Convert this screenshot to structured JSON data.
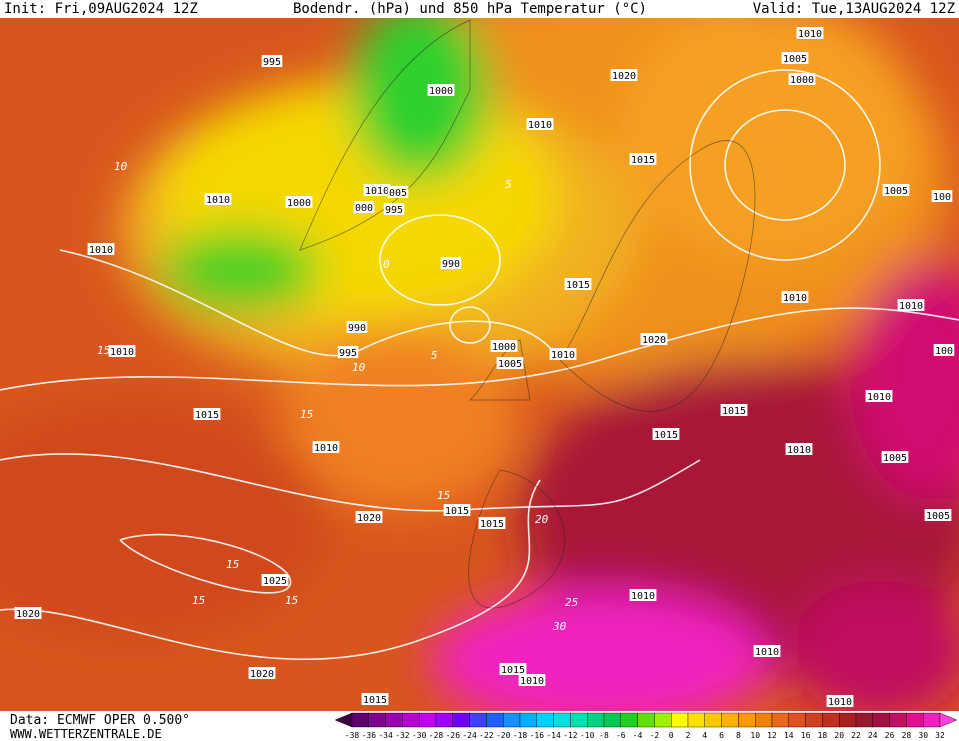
{
  "header": {
    "init": "Init: Fri,09AUG2024 12Z",
    "title": "Bodendr. (hPa) und 850 hPa Temperatur (°C)",
    "valid": "Valid: Tue,13AUG2024 12Z"
  },
  "footer": {
    "data": "Data: ECMWF OPER 0.500°",
    "site": "WWW.WETTERZENTRALE.DE"
  },
  "isobar_labels": [
    "995",
    "1010",
    "1005",
    "1020",
    "1000",
    "1000",
    "1010",
    "1015",
    "1010",
    "005",
    "1005",
    "100",
    "1010",
    "1000",
    "000",
    "995",
    "1010",
    "990",
    "1015",
    "1010",
    "1010",
    "990",
    "1020",
    "1000",
    "100",
    "1010",
    "995",
    "1010",
    "1005",
    "1010",
    "1015",
    "1015",
    "1015",
    "1010",
    "1010",
    "1005",
    "1015",
    "1015",
    "1020",
    "1005",
    "1025",
    "1020",
    "1010",
    "1010",
    "1015",
    "1010",
    "1020",
    "1015",
    "1010"
  ],
  "contour_labels": [
    "10",
    "15",
    "10",
    "5",
    "15",
    "15",
    "20",
    "15",
    "15",
    "15",
    "25",
    "30",
    "0",
    "5"
  ],
  "colorbar": {
    "labels": [
      -38,
      -36,
      -34,
      -32,
      -30,
      -28,
      -26,
      -24,
      -22,
      -20,
      -18,
      -16,
      -14,
      -12,
      -10,
      -8,
      -6,
      -4,
      -2,
      0,
      2,
      4,
      6,
      8,
      10,
      12,
      14,
      16,
      18,
      20,
      22,
      24,
      26,
      28,
      30,
      32
    ],
    "colors": [
      "#400040",
      "#600070",
      "#800090",
      "#9a00b0",
      "#b400d0",
      "#c000f0",
      "#a000ff",
      "#7000ff",
      "#4040ff",
      "#2060ff",
      "#1890ff",
      "#00b0ff",
      "#00d0ff",
      "#00e0e0",
      "#00e0b0",
      "#00d080",
      "#00c850",
      "#20d020",
      "#60e000",
      "#a0f000",
      "#ffff00",
      "#ffe000",
      "#ffc800",
      "#ffb000",
      "#ff9800",
      "#f08000",
      "#e86818",
      "#e05020",
      "#d04020",
      "#c03020",
      "#a82020",
      "#981830",
      "#a01040",
      "#c01060",
      "#e01090",
      "#f020c0",
      "#ff40e0"
    ]
  }
}
